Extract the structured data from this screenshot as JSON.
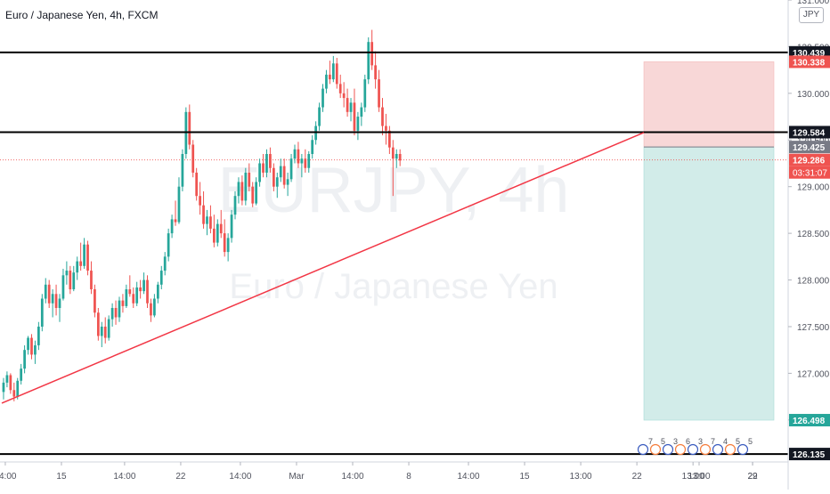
{
  "title": "Euro / Japanese Yen, 4h, FXCM",
  "currency": "JPY",
  "watermark": {
    "symbol": "EURJPY, 4h",
    "name": "Euro / Japanese Yen"
  },
  "colors": {
    "up": "#26a69a",
    "down": "#ef5350",
    "trend": "#f23645",
    "stop": "#f8d7d7",
    "target": "#d2ece9"
  },
  "chart_data": {
    "type": "candlestick",
    "title": "Euro / Japanese Yen, 4h, FXCM",
    "ylim": [
      126.05,
      131.0
    ],
    "y_ticks": [
      131.0,
      130.5,
      130.0,
      129.5,
      129.0,
      128.5,
      128.0,
      127.5,
      127.0,
      126.5
    ],
    "y_tick_labels": [
      "131.000",
      "130.500",
      "130.000",
      "129.500",
      "129.000",
      "128.500",
      "128.000",
      "127.500",
      "127.000",
      "126.500"
    ],
    "x_ticks": [
      {
        "label": "14:00",
        "bar": 1
      },
      {
        "label": "15",
        "bar": 17
      },
      {
        "label": "14:00",
        "bar": 35
      },
      {
        "label": "22",
        "bar": 51
      },
      {
        "label": "14:00",
        "bar": 68
      },
      {
        "label": "Mar",
        "bar": 84
      },
      {
        "label": "14:00",
        "bar": 100
      },
      {
        "label": "8",
        "bar": 116
      },
      {
        "label": "14:00",
        "bar": 133
      },
      {
        "label": "15",
        "bar": 149
      },
      {
        "label": "13:00",
        "bar": 165
      },
      {
        "label": "22",
        "bar": 181
      },
      {
        "label": "13:00",
        "bar": 197
      },
      {
        "label": "22",
        "bar": 214
      }
    ],
    "x_extra_ticks": [
      "13:00",
      "29"
    ],
    "horizontal_levels": [
      130.439,
      129.584,
      126.135
    ],
    "price_labels": [
      {
        "value": 130.439,
        "text": "130.439",
        "style": "dark"
      },
      {
        "value": 130.338,
        "text": "130.338",
        "style": "red"
      },
      {
        "value": 129.584,
        "text": "129.584",
        "style": "dark"
      },
      {
        "value": 129.425,
        "text": "129.425",
        "style": "gray"
      },
      {
        "value": 129.286,
        "text": "129.286",
        "style": "red"
      },
      {
        "value": 126.498,
        "text": "126.498",
        "style": "green"
      },
      {
        "value": 126.135,
        "text": "126.135",
        "style": "dark"
      }
    ],
    "countdown": "03:31:07",
    "current_price": 129.286,
    "trendline": {
      "from": {
        "bar": 0,
        "price": 126.68
      },
      "to": {
        "bar": 183,
        "price": 129.58
      }
    },
    "position": {
      "entry": 129.425,
      "stop": 130.338,
      "target": 126.498,
      "start_bar": 183
    },
    "event_markers": [
      "7",
      "5",
      "3",
      "6",
      "3",
      "7",
      "4",
      "5",
      "5"
    ],
    "candles": [
      [
        126.8,
        126.95,
        126.72,
        126.9
      ],
      [
        126.9,
        127.02,
        126.85,
        126.98
      ],
      [
        126.98,
        127.0,
        126.78,
        126.82
      ],
      [
        126.82,
        126.9,
        126.7,
        126.75
      ],
      [
        126.75,
        126.95,
        126.72,
        126.92
      ],
      [
        126.92,
        127.1,
        126.88,
        127.05
      ],
      [
        127.05,
        127.3,
        127.0,
        127.25
      ],
      [
        127.25,
        127.4,
        127.2,
        127.38
      ],
      [
        127.38,
        127.42,
        127.15,
        127.2
      ],
      [
        127.2,
        127.35,
        127.1,
        127.3
      ],
      [
        127.3,
        127.55,
        127.25,
        127.5
      ],
      [
        127.5,
        127.85,
        127.45,
        127.8
      ],
      [
        127.8,
        128.02,
        127.75,
        127.95
      ],
      [
        127.95,
        128.0,
        127.7,
        127.75
      ],
      [
        127.75,
        127.9,
        127.6,
        127.85
      ],
      [
        127.85,
        127.95,
        127.62,
        127.7
      ],
      [
        127.7,
        127.85,
        127.55,
        127.8
      ],
      [
        127.8,
        128.12,
        127.78,
        128.05
      ],
      [
        128.05,
        128.2,
        127.95,
        128.1
      ],
      [
        128.1,
        128.15,
        127.85,
        127.9
      ],
      [
        127.9,
        128.15,
        127.88,
        128.08
      ],
      [
        128.08,
        128.25,
        128.0,
        128.2
      ],
      [
        128.2,
        128.4,
        128.1,
        128.15
      ],
      [
        128.15,
        128.45,
        128.12,
        128.38
      ],
      [
        128.38,
        128.42,
        128.05,
        128.1
      ],
      [
        128.1,
        128.2,
        127.85,
        127.9
      ],
      [
        127.9,
        127.95,
        127.6,
        127.65
      ],
      [
        127.65,
        127.7,
        127.35,
        127.4
      ],
      [
        127.4,
        127.55,
        127.28,
        127.5
      ],
      [
        127.5,
        127.6,
        127.32,
        127.38
      ],
      [
        127.38,
        127.62,
        127.35,
        127.58
      ],
      [
        127.58,
        127.75,
        127.5,
        127.7
      ],
      [
        127.7,
        127.78,
        127.52,
        127.6
      ],
      [
        127.6,
        127.82,
        127.55,
        127.78
      ],
      [
        127.78,
        127.85,
        127.65,
        127.72
      ],
      [
        127.72,
        127.95,
        127.7,
        127.9
      ],
      [
        127.9,
        128.05,
        127.82,
        127.85
      ],
      [
        127.85,
        127.92,
        127.7,
        127.75
      ],
      [
        127.75,
        127.98,
        127.72,
        127.92
      ],
      [
        127.92,
        128.0,
        127.8,
        127.88
      ],
      [
        127.88,
        128.08,
        127.85,
        128.0
      ],
      [
        128.0,
        128.05,
        127.7,
        127.75
      ],
      [
        127.75,
        127.8,
        127.55,
        127.62
      ],
      [
        127.62,
        127.85,
        127.6,
        127.8
      ],
      [
        127.8,
        127.98,
        127.75,
        127.95
      ],
      [
        127.95,
        128.15,
        127.9,
        128.1
      ],
      [
        128.1,
        128.3,
        128.05,
        128.25
      ],
      [
        128.25,
        128.55,
        128.2,
        128.5
      ],
      [
        128.5,
        128.7,
        128.45,
        128.65
      ],
      [
        128.65,
        128.85,
        128.58,
        128.62
      ],
      [
        128.62,
        129.1,
        128.6,
        129.0
      ],
      [
        129.0,
        129.4,
        128.95,
        129.35
      ],
      [
        129.35,
        129.85,
        129.3,
        129.8
      ],
      [
        129.8,
        129.88,
        129.4,
        129.45
      ],
      [
        129.45,
        129.5,
        129.1,
        129.15
      ],
      [
        129.15,
        129.2,
        128.85,
        128.9
      ],
      [
        128.9,
        129.05,
        128.7,
        128.8
      ],
      [
        128.8,
        128.95,
        128.55,
        128.6
      ],
      [
        128.6,
        128.75,
        128.48,
        128.68
      ],
      [
        128.68,
        128.8,
        128.5,
        128.55
      ],
      [
        128.55,
        128.7,
        128.35,
        128.4
      ],
      [
        128.4,
        128.65,
        128.36,
        128.6
      ],
      [
        128.6,
        128.75,
        128.45,
        128.5
      ],
      [
        128.5,
        128.65,
        128.25,
        128.3
      ],
      [
        128.3,
        128.5,
        128.2,
        128.45
      ],
      [
        128.45,
        128.75,
        128.4,
        128.7
      ],
      [
        128.7,
        128.95,
        128.65,
        128.9
      ],
      [
        128.9,
        129.1,
        128.82,
        129.05
      ],
      [
        129.05,
        129.12,
        128.8,
        128.85
      ],
      [
        128.85,
        129.2,
        128.8,
        129.15
      ],
      [
        129.15,
        129.25,
        128.95,
        129.0
      ],
      [
        129.0,
        129.05,
        128.78,
        128.82
      ],
      [
        128.82,
        129.1,
        128.8,
        129.05
      ],
      [
        129.05,
        129.3,
        129.0,
        129.25
      ],
      [
        129.25,
        129.35,
        129.1,
        129.15
      ],
      [
        129.15,
        129.4,
        129.1,
        129.35
      ],
      [
        129.35,
        129.42,
        129.15,
        129.2
      ],
      [
        129.2,
        129.25,
        128.95,
        129.0
      ],
      [
        129.0,
        129.15,
        128.88,
        129.1
      ],
      [
        129.1,
        129.3,
        129.05,
        129.22
      ],
      [
        129.22,
        129.3,
        128.98,
        129.02
      ],
      [
        129.02,
        129.15,
        128.9,
        129.08
      ],
      [
        129.08,
        129.35,
        129.05,
        129.3
      ],
      [
        129.3,
        129.45,
        129.25,
        129.4
      ],
      [
        129.4,
        129.48,
        129.2,
        129.25
      ],
      [
        129.25,
        129.35,
        129.1,
        129.3
      ],
      [
        129.3,
        129.4,
        129.15,
        129.2
      ],
      [
        129.2,
        129.38,
        129.15,
        129.35
      ],
      [
        129.35,
        129.55,
        129.3,
        129.5
      ],
      [
        129.5,
        129.7,
        129.45,
        129.65
      ],
      [
        129.65,
        129.9,
        129.6,
        129.85
      ],
      [
        129.85,
        130.1,
        129.8,
        130.05
      ],
      [
        130.05,
        130.25,
        130.0,
        130.2
      ],
      [
        130.2,
        130.35,
        130.1,
        130.15
      ],
      [
        130.15,
        130.4,
        130.12,
        130.32
      ],
      [
        130.32,
        130.38,
        130.05,
        130.1
      ],
      [
        130.1,
        130.2,
        129.95,
        130.0
      ],
      [
        130.0,
        130.12,
        129.85,
        129.95
      ],
      [
        129.95,
        130.05,
        129.75,
        129.8
      ],
      [
        129.8,
        129.95,
        129.7,
        129.9
      ],
      [
        129.9,
        130.05,
        129.55,
        129.6
      ],
      [
        129.6,
        129.8,
        129.5,
        129.75
      ],
      [
        129.75,
        129.9,
        129.65,
        129.85
      ],
      [
        129.85,
        130.2,
        129.8,
        130.15
      ],
      [
        130.15,
        130.6,
        130.1,
        130.55
      ],
      [
        130.55,
        130.68,
        130.25,
        130.3
      ],
      [
        130.3,
        130.45,
        130.05,
        130.15
      ],
      [
        130.15,
        130.25,
        129.8,
        129.85
      ],
      [
        129.85,
        129.95,
        129.55,
        129.65
      ],
      [
        129.65,
        129.78,
        129.45,
        129.6
      ],
      [
        129.6,
        129.65,
        129.35,
        129.42
      ],
      [
        129.42,
        129.5,
        128.9,
        129.3
      ],
      [
        129.3,
        129.4,
        129.2,
        129.35
      ],
      [
        129.35,
        129.4,
        129.22,
        129.28
      ]
    ]
  }
}
